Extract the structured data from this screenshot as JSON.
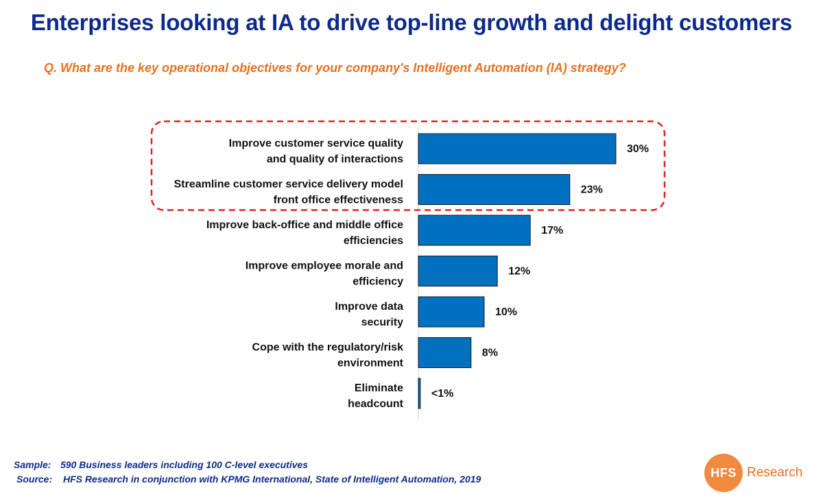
{
  "title": "Enterprises looking at IA to drive top-line growth and delight customers",
  "question": "Q. What are the key operational objectives for your company's Intelligent Automation (IA) strategy?",
  "chart_data": {
    "type": "bar",
    "orientation": "horizontal",
    "categories": [
      [
        "Improve customer service quality",
        "and quality of interactions"
      ],
      [
        "Streamline customer service delivery model",
        "front office effectiveness"
      ],
      [
        "Improve back-office and middle office",
        "efficiencies"
      ],
      [
        "Improve employee morale and",
        "efficiency"
      ],
      [
        "Improve data",
        "security"
      ],
      [
        "Cope with the regulatory/risk",
        "environment"
      ],
      [
        "Eliminate",
        "headcount"
      ]
    ],
    "values": [
      30,
      23,
      17,
      12,
      10,
      8,
      0.3
    ],
    "value_labels": [
      "30%",
      "23%",
      "17%",
      "12%",
      "10%",
      "8%",
      "<1%"
    ],
    "unit": "%",
    "highlighted_categories": [
      0,
      1
    ],
    "grid": false,
    "colors": {
      "bar": "#0070c0",
      "bar_stroke": "#1a1a1a",
      "highlight_border": "#e02020",
      "axis": "#d0d0d0"
    }
  },
  "footnotes": {
    "sample_key": "Sample:",
    "sample_value": "590 Business leaders including 100 C-level executives",
    "source_key": "Source:",
    "source_value": "HFS Research in conjunction with KPMG International, State of Intelligent Automation, 2019"
  },
  "logo": {
    "mark": "HFS",
    "text": "Research",
    "color": "#f08a3e"
  }
}
